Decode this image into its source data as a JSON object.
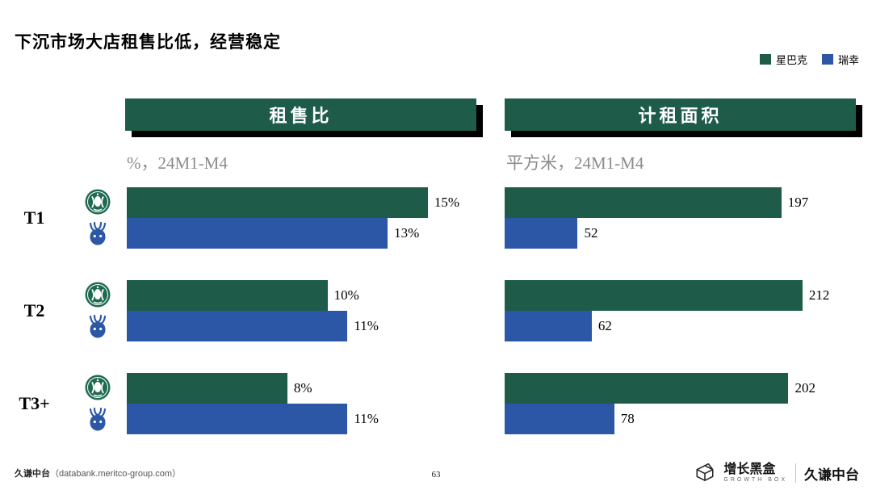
{
  "title": "下沉市场大店租售比低，经营稳定",
  "colors": {
    "green": "#1E5C49",
    "blue": "#2C57A7",
    "subtitle_gray": "#8C8C8C",
    "shadow": "#000000"
  },
  "legend": [
    {
      "label": "星巴克",
      "color": "#1E5C49"
    },
    {
      "label": "瑞幸",
      "color": "#2C57A7"
    }
  ],
  "chart_data": [
    {
      "type": "bar",
      "orientation": "horizontal",
      "title": "租售比",
      "subtitle": "%，24M1-M4",
      "categories": [
        "T1",
        "T2",
        "T3+"
      ],
      "series": [
        {
          "name": "星巴克",
          "values": [
            15,
            10,
            8
          ],
          "labels": [
            "15%",
            "10%",
            "8%"
          ]
        },
        {
          "name": "瑞幸",
          "values": [
            13,
            11,
            11
          ],
          "labels": [
            "13%",
            "11%",
            "11%"
          ]
        }
      ],
      "xlim": [
        0,
        17.5
      ],
      "grid": false,
      "legend_position": "top-right"
    },
    {
      "type": "bar",
      "orientation": "horizontal",
      "title": "计租面积",
      "subtitle": "平方米，24M1-M4",
      "categories": [
        "T1",
        "T2",
        "T3+"
      ],
      "series": [
        {
          "name": "星巴克",
          "values": [
            197,
            212,
            202
          ],
          "labels": [
            "197",
            "212",
            "202"
          ]
        },
        {
          "name": "瑞幸",
          "values": [
            52,
            62,
            78
          ],
          "labels": [
            "52",
            "62",
            "78"
          ]
        }
      ],
      "xlim": [
        0,
        250
      ],
      "grid": false,
      "legend_position": "top-right"
    }
  ],
  "footer": {
    "left_name": "久谦中台",
    "left_domain": "（databank.meritco-group.com）",
    "page_number": "63",
    "brand": {
      "cn": "增长黑盒",
      "en": "GROWTH BOX",
      "partner": "久谦中台"
    }
  }
}
